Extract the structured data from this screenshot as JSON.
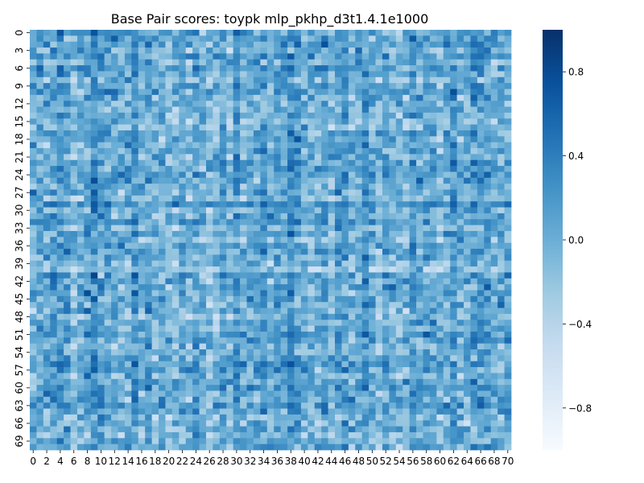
{
  "chart_data": {
    "type": "heatmap",
    "title": "Base Pair scores: toypk mlp_pkhp_d3t1.4.1e1000",
    "xlabel": "",
    "ylabel": "",
    "n_rows": 71,
    "n_cols": 71,
    "x_tick_labels": [
      "0",
      "2",
      "4",
      "6",
      "8",
      "10",
      "12",
      "14",
      "16",
      "18",
      "20",
      "22",
      "24",
      "26",
      "28",
      "30",
      "32",
      "34",
      "36",
      "38",
      "40",
      "42",
      "44",
      "46",
      "48",
      "50",
      "52",
      "54",
      "56",
      "58",
      "60",
      "62",
      "64",
      "66",
      "68",
      "70"
    ],
    "y_tick_labels": [
      "0",
      "3",
      "6",
      "9",
      "12",
      "15",
      "18",
      "21",
      "24",
      "27",
      "30",
      "33",
      "36",
      "39",
      "42",
      "45",
      "48",
      "51",
      "54",
      "57",
      "60",
      "63",
      "66",
      "69"
    ],
    "colorbar": {
      "vmin": -1.0,
      "vmax": 1.0,
      "ticks": [
        0.8,
        0.4,
        0.0,
        -0.4,
        -0.8
      ],
      "tick_labels": [
        "0.8",
        "0.4",
        "0.0",
        "−0.4",
        "−0.8"
      ]
    },
    "colormap": "Blues",
    "value_range": [
      -1.0,
      1.0
    ],
    "distribution_mean": 0.05,
    "distribution_std": 0.27,
    "note_values": "cell values are approximately -0.6 to 0.9; grid too dense to read individual cells"
  }
}
